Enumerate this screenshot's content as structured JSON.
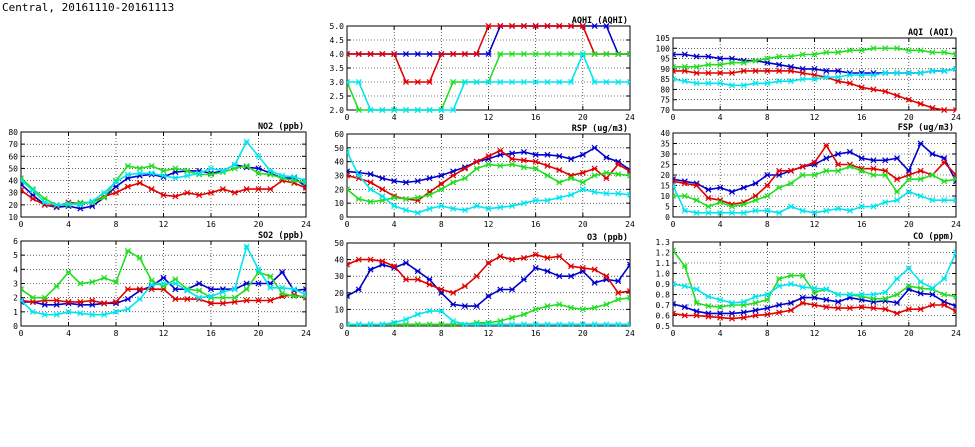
{
  "page": {
    "title": "Central, 20161110-20161113"
  },
  "colors": {
    "blue": "#0000cc",
    "red": "#e00000",
    "green": "#22dd22",
    "cyan": "#00e5ee"
  },
  "chart_data": [
    {
      "id": "aqhi",
      "type": "line",
      "title": "AQHI (AQHI)",
      "ylim": [
        2.0,
        5.0
      ],
      "yticks": [
        "2.0",
        "2.5",
        "3.0",
        "3.5",
        "4.0",
        "4.5",
        "5.0"
      ],
      "xticks": [
        "0",
        "4",
        "8",
        "12",
        "16",
        "20",
        "24"
      ],
      "grid": true,
      "series": [
        {
          "color": "blue",
          "values": [
            4,
            4,
            4,
            4,
            4,
            4,
            4,
            4,
            4,
            4,
            4,
            4,
            4,
            5,
            5,
            5,
            5,
            5,
            5,
            5,
            5,
            5,
            5,
            4,
            4
          ]
        },
        {
          "color": "red",
          "values": [
            4,
            4,
            4,
            4,
            4,
            3,
            3,
            3,
            4,
            4,
            4,
            4,
            5,
            5,
            5,
            5,
            5,
            5,
            5,
            5,
            5,
            4,
            4,
            4,
            4
          ]
        },
        {
          "color": "green",
          "values": [
            3,
            2,
            2,
            2,
            2,
            2,
            2,
            2,
            2,
            3,
            3,
            3,
            3,
            4,
            4,
            4,
            4,
            4,
            4,
            4,
            4,
            4,
            4,
            4,
            4
          ]
        },
        {
          "color": "cyan",
          "values": [
            3,
            3,
            2,
            2,
            2,
            2,
            2,
            2,
            2,
            2,
            3,
            3,
            3,
            3,
            3,
            3,
            3,
            3,
            3,
            3,
            4,
            3,
            3,
            3,
            3
          ]
        }
      ]
    },
    {
      "id": "aqi",
      "type": "line",
      "title": "AQI (AQI)",
      "ylim": [
        70,
        105
      ],
      "yticks": [
        "70",
        "75",
        "80",
        "85",
        "90",
        "95",
        "100",
        "105"
      ],
      "xticks": [
        "0",
        "4",
        "8",
        "12",
        "16",
        "20",
        "24"
      ],
      "grid": true,
      "series": [
        {
          "color": "blue",
          "values": [
            97,
            97,
            96,
            96,
            95,
            95,
            94,
            94,
            93,
            92,
            91,
            90,
            90,
            89,
            89,
            88,
            88,
            88,
            88,
            88,
            88,
            88,
            89,
            89,
            90
          ]
        },
        {
          "color": "red",
          "values": [
            89,
            89,
            88,
            88,
            88,
            88,
            89,
            89,
            89,
            89,
            89,
            88,
            87,
            86,
            84,
            83,
            81,
            80,
            79,
            77,
            75,
            73,
            71,
            70,
            70
          ]
        },
        {
          "color": "green",
          "values": [
            91,
            91,
            91,
            92,
            92,
            93,
            93,
            94,
            95,
            96,
            96,
            97,
            97,
            98,
            98,
            99,
            99,
            100,
            100,
            100,
            99,
            99,
            98,
            98,
            97
          ]
        },
        {
          "color": "cyan",
          "values": [
            85,
            84,
            83,
            83,
            83,
            82,
            82,
            83,
            83,
            84,
            84,
            85,
            85,
            86,
            86,
            87,
            87,
            87,
            88,
            88,
            88,
            88,
            89,
            89,
            90
          ]
        }
      ]
    },
    {
      "id": "no2",
      "type": "line",
      "title": "NO2 (ppb)",
      "ylim": [
        10,
        80
      ],
      "yticks": [
        "10",
        "20",
        "30",
        "40",
        "50",
        "60",
        "70",
        "80"
      ],
      "xticks": [
        "0",
        "4",
        "8",
        "12",
        "16",
        "20",
        "24"
      ],
      "grid": true,
      "series": [
        {
          "color": "blue",
          "values": [
            37,
            28,
            20,
            18,
            19,
            17,
            19,
            26,
            35,
            42,
            44,
            45,
            43,
            47,
            48,
            48,
            46,
            48,
            53,
            51,
            50,
            46,
            42,
            42,
            35
          ]
        },
        {
          "color": "red",
          "values": [
            32,
            25,
            20,
            19,
            22,
            21,
            22,
            27,
            30,
            35,
            38,
            33,
            28,
            27,
            30,
            28,
            30,
            33,
            30,
            33,
            33,
            33,
            40,
            38,
            34
          ]
        },
        {
          "color": "green",
          "values": [
            42,
            33,
            25,
            20,
            20,
            22,
            22,
            26,
            40,
            52,
            50,
            52,
            48,
            50,
            48,
            45,
            45,
            47,
            50,
            52,
            46,
            45,
            42,
            40,
            38
          ]
        },
        {
          "color": "cyan",
          "values": [
            40,
            32,
            22,
            20,
            21,
            20,
            23,
            30,
            39,
            45,
            46,
            46,
            44,
            42,
            44,
            46,
            50,
            48,
            53,
            72,
            60,
            48,
            44,
            43,
            40
          ]
        }
      ]
    },
    {
      "id": "rsp",
      "type": "line",
      "title": "RSP (ug/m3)",
      "ylim": [
        0,
        60
      ],
      "yticks": [
        "0",
        "10",
        "20",
        "30",
        "40",
        "50",
        "60"
      ],
      "xticks": [
        "0",
        "4",
        "8",
        "12",
        "16",
        "20",
        "24"
      ],
      "grid": true,
      "series": [
        {
          "color": "blue",
          "values": [
            33,
            32,
            31,
            28,
            26,
            25,
            26,
            28,
            30,
            33,
            36,
            40,
            42,
            45,
            46,
            47,
            45,
            45,
            44,
            42,
            45,
            50,
            43,
            40,
            34
          ]
        },
        {
          "color": "red",
          "values": [
            30,
            28,
            25,
            20,
            15,
            13,
            12,
            18,
            24,
            30,
            35,
            40,
            44,
            48,
            42,
            41,
            40,
            37,
            34,
            30,
            32,
            35,
            28,
            38,
            33
          ]
        },
        {
          "color": "green",
          "values": [
            20,
            13,
            11,
            12,
            14,
            13,
            14,
            16,
            20,
            25,
            28,
            35,
            38,
            37,
            38,
            36,
            35,
            30,
            25,
            28,
            25,
            30,
            32,
            31,
            30
          ]
        },
        {
          "color": "cyan",
          "values": [
            47,
            30,
            20,
            15,
            8,
            5,
            3,
            6,
            8,
            6,
            5,
            8,
            6,
            7,
            8,
            10,
            12,
            12,
            14,
            16,
            20,
            18,
            17,
            17,
            16
          ]
        }
      ]
    },
    {
      "id": "fsp",
      "type": "line",
      "title": "FSP (ug/m3)",
      "ylim": [
        0,
        40
      ],
      "yticks": [
        "0",
        "5",
        "10",
        "15",
        "20",
        "25",
        "30",
        "35",
        "40"
      ],
      "xticks": [
        "0",
        "4",
        "8",
        "12",
        "16",
        "20",
        "24"
      ],
      "grid": true,
      "series": [
        {
          "color": "blue",
          "values": [
            18,
            17,
            16,
            13,
            14,
            12,
            14,
            16,
            20,
            20,
            22,
            24,
            25,
            28,
            30,
            31,
            28,
            27,
            27,
            28,
            22,
            35,
            30,
            28,
            17
          ]
        },
        {
          "color": "red",
          "values": [
            17,
            16,
            15,
            9,
            8,
            6,
            7,
            10,
            15,
            22,
            22,
            24,
            26,
            34,
            25,
            25,
            23,
            23,
            22,
            18,
            20,
            22,
            20,
            26,
            20
          ]
        },
        {
          "color": "green",
          "values": [
            10,
            10,
            8,
            5,
            7,
            5,
            6,
            8,
            10,
            14,
            16,
            20,
            20,
            22,
            22,
            24,
            22,
            20,
            20,
            12,
            18,
            18,
            20,
            17,
            18
          ]
        },
        {
          "color": "cyan",
          "values": [
            15,
            3,
            2,
            2,
            2,
            2,
            2,
            3,
            3,
            2,
            5,
            3,
            2,
            3,
            4,
            3,
            5,
            5,
            7,
            8,
            12,
            10,
            8,
            8,
            8
          ]
        }
      ]
    },
    {
      "id": "so2",
      "type": "line",
      "title": "SO2 (ppb)",
      "ylim": [
        0,
        6
      ],
      "yticks": [
        "0",
        "1",
        "2",
        "3",
        "4",
        "5",
        "6"
      ],
      "xticks": [
        "0",
        "4",
        "8",
        "12",
        "16",
        "20",
        "24"
      ],
      "grid": true,
      "series": [
        {
          "color": "blue",
          "values": [
            1.7,
            1.7,
            1.5,
            1.5,
            1.6,
            1.5,
            1.5,
            1.6,
            1.6,
            1.9,
            2.5,
            2.8,
            3.4,
            2.6,
            2.6,
            3.0,
            2.6,
            2.6,
            2.6,
            3.0,
            3.0,
            3.0,
            3.8,
            2.5,
            2.6
          ]
        },
        {
          "color": "red",
          "values": [
            1.8,
            1.7,
            1.8,
            1.8,
            1.7,
            1.7,
            1.8,
            1.6,
            1.7,
            2.6,
            2.6,
            2.6,
            2.6,
            1.9,
            1.9,
            1.9,
            1.6,
            1.6,
            1.7,
            1.8,
            1.8,
            1.8,
            2.1,
            2.2,
            2.0
          ]
        },
        {
          "color": "green",
          "values": [
            2.6,
            2.0,
            2.0,
            2.8,
            3.8,
            3.0,
            3.1,
            3.4,
            3.1,
            5.3,
            4.8,
            3.2,
            2.8,
            3.3,
            2.6,
            2.5,
            2.0,
            2.0,
            2.0,
            2.6,
            3.8,
            3.5,
            2.3,
            2.1,
            2.1
          ]
        },
        {
          "color": "cyan",
          "values": [
            1.8,
            1.0,
            0.8,
            0.8,
            1.0,
            0.9,
            0.8,
            0.8,
            1.0,
            1.2,
            1.9,
            2.9,
            3.0,
            3.0,
            2.5,
            2.0,
            2.1,
            2.4,
            2.6,
            5.6,
            4.0,
            2.7,
            2.7,
            2.6,
            2.2
          ]
        }
      ]
    },
    {
      "id": "o3",
      "type": "line",
      "title": "O3 (ppb)",
      "ylim": [
        0,
        50
      ],
      "yticks": [
        "0",
        "10",
        "20",
        "30",
        "40",
        "50"
      ],
      "xticks": [
        "0",
        "4",
        "8",
        "12",
        "16",
        "20",
        "24"
      ],
      "grid": true,
      "series": [
        {
          "color": "blue",
          "values": [
            18,
            22,
            34,
            37,
            35,
            38,
            33,
            28,
            20,
            13,
            12,
            12,
            18,
            22,
            22,
            28,
            35,
            33,
            30,
            30,
            33,
            26,
            28,
            27,
            37
          ]
        },
        {
          "color": "red",
          "values": [
            37,
            40,
            40,
            39,
            36,
            28,
            28,
            25,
            22,
            20,
            24,
            30,
            38,
            42,
            40,
            41,
            43,
            41,
            42,
            36,
            35,
            34,
            30,
            20,
            21
          ]
        },
        {
          "color": "green",
          "values": [
            1,
            1,
            1,
            1,
            1,
            1,
            1,
            1,
            1,
            1,
            1,
            2,
            2,
            3,
            5,
            7,
            10,
            12,
            13,
            11,
            10,
            11,
            13,
            16,
            17
          ]
        },
        {
          "color": "cyan",
          "values": [
            1,
            1,
            1,
            1,
            2,
            4,
            7,
            9,
            9,
            3,
            1,
            1,
            1,
            1,
            1,
            1,
            1,
            1,
            1,
            1,
            1,
            1,
            1,
            1,
            1
          ]
        }
      ]
    },
    {
      "id": "co",
      "type": "line",
      "title": "CO (ppm)",
      "ylim": [
        0.5,
        1.3
      ],
      "yticks": [
        "0.5",
        "0.6",
        "0.7",
        "0.8",
        "0.9",
        "1.0",
        "1.1",
        "1.2",
        "1.3"
      ],
      "xticks": [
        "0",
        "4",
        "8",
        "12",
        "16",
        "20",
        "24"
      ],
      "grid": true,
      "series": [
        {
          "color": "blue",
          "values": [
            0.71,
            0.68,
            0.64,
            0.62,
            0.62,
            0.62,
            0.63,
            0.65,
            0.67,
            0.7,
            0.72,
            0.77,
            0.77,
            0.75,
            0.73,
            0.77,
            0.75,
            0.73,
            0.74,
            0.72,
            0.85,
            0.81,
            0.8,
            0.73,
            0.69
          ]
        },
        {
          "color": "red",
          "values": [
            0.62,
            0.6,
            0.6,
            0.59,
            0.58,
            0.57,
            0.58,
            0.6,
            0.61,
            0.63,
            0.65,
            0.72,
            0.7,
            0.68,
            0.67,
            0.67,
            0.68,
            0.67,
            0.66,
            0.62,
            0.66,
            0.66,
            0.7,
            0.7,
            0.64
          ]
        },
        {
          "color": "green",
          "values": [
            1.22,
            1.07,
            0.72,
            0.69,
            0.68,
            0.7,
            0.7,
            0.72,
            0.75,
            0.95,
            0.98,
            0.98,
            0.82,
            0.85,
            0.8,
            0.8,
            0.78,
            0.76,
            0.76,
            0.8,
            0.88,
            0.86,
            0.85,
            0.8,
            0.78
          ]
        },
        {
          "color": "cyan",
          "values": [
            0.9,
            0.88,
            0.85,
            0.78,
            0.75,
            0.72,
            0.73,
            0.78,
            0.8,
            0.88,
            0.9,
            0.87,
            0.86,
            0.85,
            0.8,
            0.8,
            0.8,
            0.8,
            0.82,
            0.95,
            1.05,
            0.92,
            0.86,
            0.95,
            1.2
          ]
        }
      ]
    }
  ]
}
